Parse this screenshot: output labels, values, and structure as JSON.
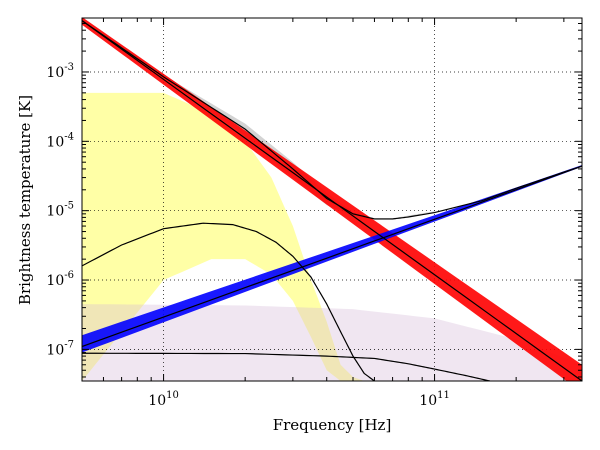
{
  "chart_data": {
    "type": "line",
    "title": "",
    "xlabel": "Frequency [Hz]",
    "ylabel": "Brightness temperature [K]",
    "xscale": "log",
    "yscale": "log",
    "xlim": [
      5000000000,
      350000000000
    ],
    "ylim": [
      3.5e-08,
      0.006
    ],
    "grid": true,
    "legend": "none",
    "x_ticks": [
      {
        "value": 10000000000,
        "base": "10",
        "exp": "10"
      },
      {
        "value": 100000000000,
        "base": "10",
        "exp": "11"
      }
    ],
    "y_ticks": [
      {
        "value": 1e-07,
        "base": "10",
        "exp": "-7"
      },
      {
        "value": 1e-06,
        "base": "10",
        "exp": "-6"
      },
      {
        "value": 1e-05,
        "base": "10",
        "exp": "-5"
      },
      {
        "value": 0.0001,
        "base": "10",
        "exp": "-4"
      },
      {
        "value": 0.001,
        "base": "10",
        "exp": "-3"
      }
    ],
    "bands": [
      {
        "color": "#ffff00",
        "x": [
          5000000000,
          10000000000,
          15000000000,
          20000000000,
          25000000000,
          30000000000,
          35000000000,
          40000000000,
          45000000000,
          50000000000,
          55000000000
        ],
        "upper": [
          0.0005,
          0.0005,
          0.00025,
          0.0001,
          3e-05,
          6e-06,
          1e-06,
          2.5e-07,
          6e-08,
          4e-08,
          3.5e-08
        ],
        "lower": [
          3.5e-08,
          1e-06,
          2e-06,
          2e-06,
          1.2e-06,
          5e-07,
          1.5e-07,
          5e-08,
          3.5e-08,
          3.5e-08,
          3.5e-08
        ]
      },
      {
        "color": "#d4b8d8",
        "x": [
          5000000000,
          20000000000,
          50000000000,
          100000000000,
          200000000000,
          350000000000
        ],
        "upper": [
          4.5e-07,
          4.3e-07,
          3.8e-07,
          2.8e-07,
          1.4e-07,
          6e-08
        ],
        "lower": [
          3.5e-08,
          3.5e-08,
          3.5e-08,
          3.5e-08,
          3.5e-08,
          3.5e-08
        ]
      },
      {
        "color": "#808080",
        "x": [
          5000000000,
          10000000000,
          20000000000,
          30000000000,
          40000000000,
          50000000000,
          60000000000,
          70000000000,
          100000000000
        ],
        "upper": [
          0.006,
          0.0009,
          0.00018,
          5e-05,
          1.8e-05,
          9.5e-06,
          7.8e-06,
          7.8e-06,
          9.8e-06
        ],
        "lower": [
          0.006,
          0.0008,
          0.00012,
          3e-05,
          1.2e-05,
          8.5e-06,
          7.4e-06,
          7.4e-06,
          9.5e-06
        ]
      }
    ],
    "series": [
      {
        "color": "#ff0000",
        "style": "band",
        "x": [
          5000000000,
          350000000000
        ],
        "upper": [
          0.0062,
          6e-08
        ],
        "lower": [
          0.0048,
          2.4e-08
        ]
      },
      {
        "color": "#0000ff",
        "style": "band",
        "x": [
          5000000000,
          350000000000
        ],
        "upper": [
          1.6e-07,
          4.55e-05
        ],
        "lower": [
          9e-08,
          4.3e-05
        ]
      },
      {
        "color": "#000000",
        "style": "line",
        "x": [
          5000000000,
          350000000000
        ],
        "y": [
          0.0055,
          3.5e-08
        ]
      },
      {
        "color": "#000000",
        "style": "line",
        "x": [
          5000000000,
          350000000000
        ],
        "y": [
          1.1e-07,
          4.4e-05
        ]
      },
      {
        "color": "#000000",
        "style": "line",
        "x": [
          5000000000,
          10000000000,
          20000000000,
          30000000000,
          40000000000,
          50000000000,
          60000000000,
          70000000000,
          80000000000,
          100000000000,
          150000000000,
          200000000000,
          300000000000,
          350000000000
        ],
        "y": [
          0.0055,
          0.00085,
          0.00015,
          4e-05,
          1.5e-05,
          9e-06,
          7.6e-06,
          7.6e-06,
          8.1e-06,
          9.4e-06,
          1.4e-05,
          2.1e-05,
          3.6e-05,
          4.4e-05
        ]
      },
      {
        "color": "#000000",
        "style": "line",
        "x": [
          5000000000,
          7000000000,
          10000000000,
          14000000000,
          18000000000,
          22000000000,
          26000000000,
          30000000000,
          35000000000,
          40000000000,
          45000000000,
          50000000000,
          55000000000,
          60000000000
        ],
        "y": [
          1.6e-06,
          3.2e-06,
          5.5e-06,
          6.6e-06,
          6.3e-06,
          5e-06,
          3.5e-06,
          2.2e-06,
          1.1e-06,
          4.5e-07,
          1.8e-07,
          8e-08,
          4.5e-08,
          3.5e-08
        ]
      },
      {
        "color": "#000000",
        "style": "line",
        "x": [
          5000000000,
          20000000000,
          40000000000,
          60000000000,
          80000000000,
          100000000000,
          130000000000,
          160000000000
        ],
        "y": [
          8.8e-08,
          8.7e-08,
          8e-08,
          7.4e-08,
          6.2e-08,
          5.2e-08,
          4.2e-08,
          3.5e-08
        ]
      }
    ]
  }
}
